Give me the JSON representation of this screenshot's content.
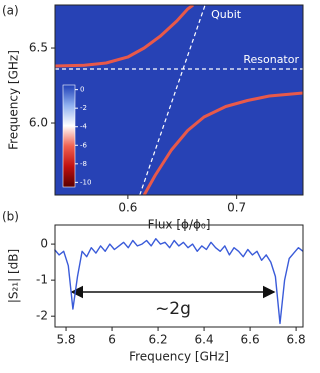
{
  "chart_data": [
    {
      "type": "heatmap",
      "panel_label": "(a)",
      "x_label": "Flux [ϕ/ϕ₀]",
      "y_label": "Frequency [GHz]",
      "xlim": [
        0.533,
        0.761
      ],
      "ylim": [
        5.52,
        6.787
      ],
      "xticks": [
        0.6,
        0.7
      ],
      "yticks": [
        {
          "value": 6,
          "label": "6.0"
        },
        6.5
      ],
      "background": "#2742b5",
      "colorbar": {
        "lim": [
          0.5,
          -10.5
        ],
        "ticks": [
          0,
          -2,
          -4,
          -6,
          -8,
          -10
        ],
        "colors": [
          "#1f3fb8",
          "#8fb0f0",
          "#ffffff",
          "#f06050",
          "#c01010",
          "#5a0000"
        ]
      },
      "series": [
        {
          "color": "#e8594a",
          "style": "solid",
          "x": [
            0.533,
            0.56,
            0.58,
            0.6,
            0.615,
            0.63,
            0.645,
            0.655,
            0.66
          ],
          "values": [
            6.38,
            6.385,
            6.4,
            6.44,
            6.5,
            6.58,
            6.68,
            6.76,
            6.787
          ]
        },
        {
          "color": "#e8594a",
          "style": "solid",
          "x": [
            0.615,
            0.625,
            0.64,
            0.655,
            0.67,
            0.69,
            0.71,
            0.73,
            0.761
          ],
          "values": [
            5.52,
            5.65,
            5.82,
            5.95,
            6.04,
            6.11,
            6.15,
            6.18,
            6.2
          ]
        },
        {
          "name": "Qubit",
          "color": "#ffffff",
          "style": "dashed",
          "x": [
            0.611,
            0.671
          ],
          "values": [
            5.52,
            6.787
          ]
        },
        {
          "name": "Resonator",
          "color": "#ffffff",
          "style": "dashed",
          "x": [
            0.533,
            0.761
          ],
          "values": [
            6.36,
            6.36
          ]
        }
      ]
    },
    {
      "type": "line",
      "panel_label": "(b)",
      "x_label": "Frequency [GHz]",
      "y_label": "|S₂₁| [dB]",
      "annotation": "~2g",
      "xlim": [
        5.752,
        6.83
      ],
      "ylim": [
        -2.3,
        0.53
      ],
      "xticks": [
        5.8,
        6,
        6.2,
        6.4,
        6.6,
        6.8
      ],
      "yticks": [
        0,
        -1,
        -2
      ],
      "series": [
        {
          "color": "#3a5bd9",
          "style": "solid",
          "x": [
            5.75,
            5.77,
            5.79,
            5.81,
            5.83,
            5.85,
            5.87,
            5.89,
            5.91,
            5.93,
            5.95,
            5.97,
            5.99,
            6.01,
            6.03,
            6.05,
            6.07,
            6.09,
            6.11,
            6.13,
            6.15,
            6.17,
            6.19,
            6.21,
            6.23,
            6.25,
            6.27,
            6.29,
            6.31,
            6.33,
            6.35,
            6.37,
            6.39,
            6.41,
            6.43,
            6.45,
            6.47,
            6.49,
            6.51,
            6.53,
            6.55,
            6.57,
            6.59,
            6.61,
            6.63,
            6.65,
            6.67,
            6.69,
            6.71,
            6.73,
            6.75,
            6.77,
            6.79,
            6.81,
            6.83
          ],
          "values": [
            -0.15,
            -0.3,
            -0.2,
            -0.6,
            -1.8,
            -0.9,
            -0.2,
            -0.35,
            -0.1,
            -0.25,
            -0.05,
            -0.2,
            0.0,
            -0.15,
            -0.05,
            0.05,
            -0.1,
            0.1,
            -0.05,
            0.0,
            0.1,
            -0.05,
            0.15,
            0.0,
            0.05,
            -0.1,
            0.1,
            -0.05,
            0.05,
            -0.1,
            0.0,
            -0.2,
            -0.05,
            -0.15,
            0.05,
            -0.1,
            -0.2,
            -0.05,
            -0.3,
            -0.1,
            -0.2,
            -0.35,
            -0.15,
            -0.3,
            -0.2,
            -0.45,
            -0.3,
            -0.5,
            -0.9,
            -2.2,
            -1.0,
            -0.4,
            -0.25,
            -0.1,
            -0.2
          ]
        }
      ]
    }
  ]
}
